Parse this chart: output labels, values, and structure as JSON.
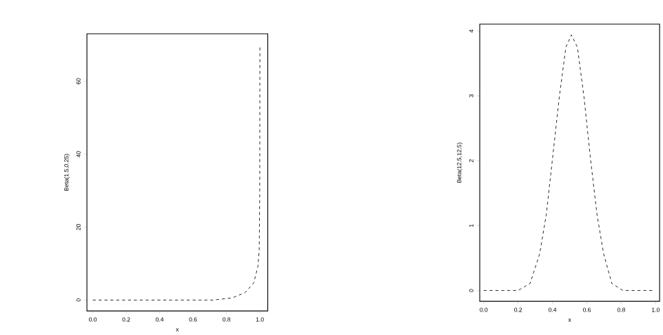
{
  "chart_data": [
    {
      "type": "line",
      "xlabel": "x",
      "ylabel": "Beta(1.5,0.25)",
      "color": "#000000",
      "line_style": "dashed",
      "x": [
        0,
        0.2,
        0.4,
        0.6,
        0.72,
        0.835,
        0.91,
        0.963,
        0.988,
        0.996,
        0.999,
        1.0
      ],
      "values": [
        0,
        0,
        0,
        0,
        0,
        0.6,
        2.0,
        4.7,
        9.2,
        13.8,
        30,
        70
      ],
      "xlim": [
        -0.035,
        1.047
      ],
      "ylim": [
        -3,
        73
      ],
      "xticks": [
        {
          "value": 0,
          "label": "0.0"
        },
        {
          "value": 0.2,
          "label": "0.2"
        },
        {
          "value": 0.4,
          "label": "0.4"
        },
        {
          "value": 0.6,
          "label": "0.6"
        },
        {
          "value": 0.8,
          "label": "0.8"
        },
        {
          "value": 1,
          "label": "1.0"
        }
      ],
      "yticks": [
        0,
        20,
        40,
        60
      ]
    },
    {
      "type": "line",
      "xlabel": "x",
      "ylabel": "Beta(12.5,12.5)",
      "color": "#000000",
      "line_style": "dashed",
      "x": [
        0,
        0.2,
        0.27,
        0.326,
        0.364,
        0.4,
        0.44,
        0.478,
        0.51,
        0.545,
        0.583,
        0.621,
        0.659,
        0.697,
        0.745,
        0.81,
        0.98
      ],
      "values": [
        0,
        0,
        0.11,
        0.57,
        1.17,
        2.03,
        2.99,
        3.75,
        3.94,
        3.75,
        2.99,
        2.03,
        1.17,
        0.57,
        0.11,
        0,
        0
      ],
      "xlim": [
        -0.023,
        1.023
      ],
      "ylim": [
        -0.167,
        4.106
      ],
      "xticks": [
        {
          "value": 0,
          "label": "0.0"
        },
        {
          "value": 0.2,
          "label": "0.2"
        },
        {
          "value": 0.4,
          "label": "0.4"
        },
        {
          "value": 0.6,
          "label": "0.6"
        },
        {
          "value": 0.8,
          "label": "0.8"
        },
        {
          "value": 1,
          "label": "1.0"
        }
      ],
      "yticks": [
        0,
        1,
        2,
        3,
        4
      ]
    }
  ]
}
